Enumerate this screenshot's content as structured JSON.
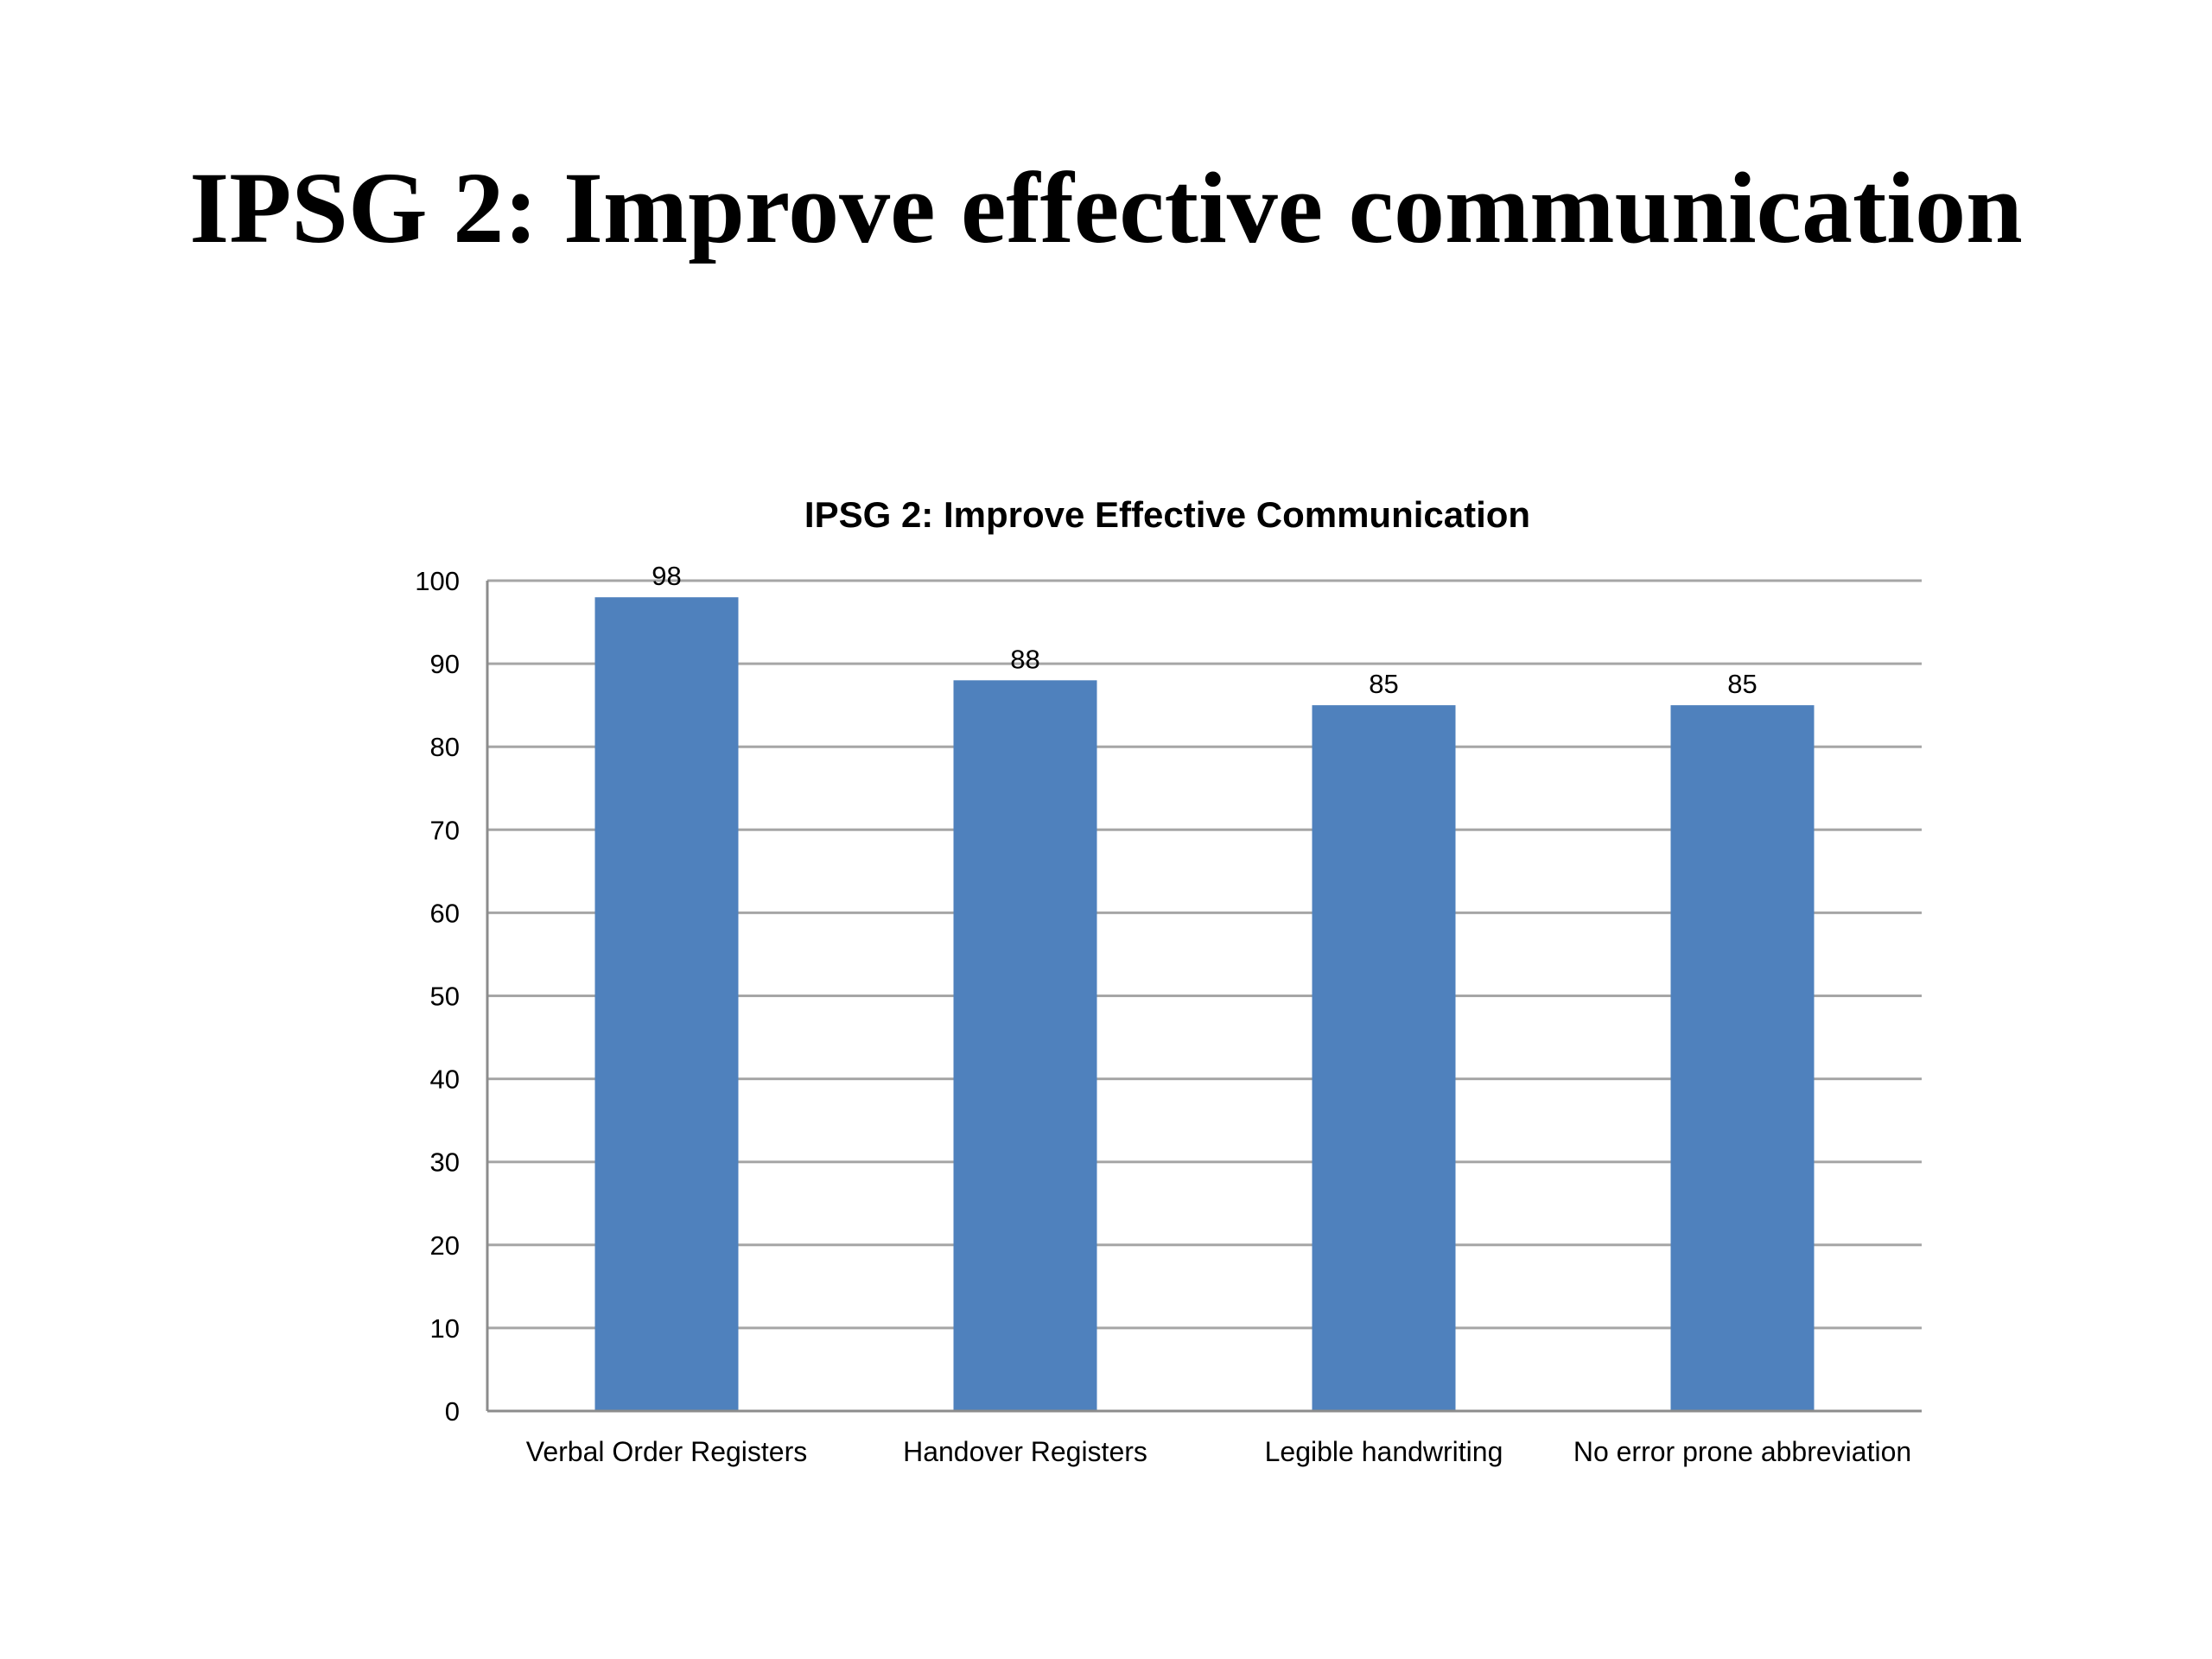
{
  "slide": {
    "title": "IPSG 2: Improve effective communication"
  },
  "colors": {
    "bar": "#4f81bd",
    "grid": "#a6a6a6",
    "axis": "#8c8c8c"
  },
  "chart_data": {
    "type": "bar",
    "title": "IPSG 2: Improve Effective Communication",
    "categories": [
      "Verbal Order Registers",
      "Handover Registers",
      "Legible handwriting",
      "No error prone abbreviation"
    ],
    "values": [
      98,
      88,
      85,
      85
    ],
    "data_labels": [
      "98",
      "88",
      "85",
      "85"
    ],
    "xlabel": "",
    "ylabel": "",
    "ylim": [
      0,
      100
    ],
    "yticks": [
      0,
      10,
      20,
      30,
      40,
      50,
      60,
      70,
      80,
      90,
      100
    ],
    "grid": true,
    "legend": "none"
  }
}
